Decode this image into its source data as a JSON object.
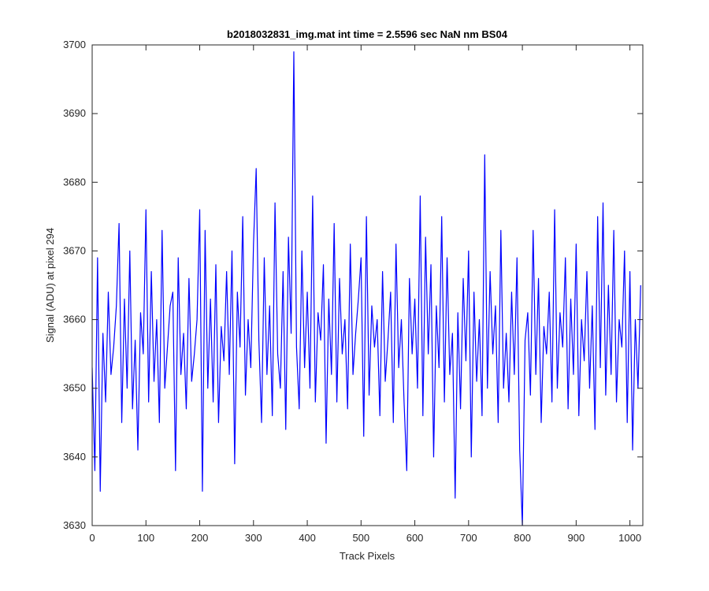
{
  "chart_data": {
    "type": "line",
    "title": "b2018032831_img.mat int time = 2.5596 sec  NaN nm BS04",
    "xlabel": "Track Pixels",
    "ylabel": "Signal (ADU) at pixel 294",
    "xlim": [
      0,
      1024
    ],
    "ylim": [
      3630,
      3700
    ],
    "xticks": [
      0,
      100,
      200,
      300,
      400,
      500,
      600,
      700,
      800,
      900,
      1000
    ],
    "yticks": [
      3630,
      3640,
      3650,
      3660,
      3670,
      3680,
      3690,
      3700
    ],
    "color": "#0000ff",
    "x": [
      0,
      5,
      10,
      15,
      20,
      25,
      30,
      35,
      40,
      45,
      50,
      55,
      60,
      65,
      70,
      75,
      80,
      85,
      90,
      95,
      100,
      105,
      110,
      115,
      120,
      125,
      130,
      135,
      140,
      145,
      150,
      155,
      160,
      165,
      170,
      175,
      180,
      185,
      190,
      195,
      200,
      205,
      210,
      215,
      220,
      225,
      230,
      235,
      240,
      245,
      250,
      255,
      260,
      265,
      270,
      275,
      280,
      285,
      290,
      295,
      300,
      305,
      310,
      315,
      320,
      325,
      330,
      335,
      340,
      345,
      350,
      355,
      360,
      365,
      370,
      375,
      380,
      385,
      390,
      395,
      400,
      405,
      410,
      415,
      420,
      425,
      430,
      435,
      440,
      445,
      450,
      455,
      460,
      465,
      470,
      475,
      480,
      485,
      490,
      495,
      500,
      505,
      510,
      515,
      520,
      525,
      530,
      535,
      540,
      545,
      550,
      555,
      560,
      565,
      570,
      575,
      580,
      585,
      590,
      595,
      600,
      605,
      610,
      615,
      620,
      625,
      630,
      635,
      640,
      645,
      650,
      655,
      660,
      665,
      670,
      675,
      680,
      685,
      690,
      695,
      700,
      705,
      710,
      715,
      720,
      725,
      730,
      735,
      740,
      745,
      750,
      755,
      760,
      765,
      770,
      775,
      780,
      785,
      790,
      795,
      800,
      805,
      810,
      815,
      820,
      825,
      830,
      835,
      840,
      845,
      850,
      855,
      860,
      865,
      870,
      875,
      880,
      885,
      890,
      895,
      900,
      905,
      910,
      915,
      920,
      925,
      930,
      935,
      940,
      945,
      950,
      955,
      960,
      965,
      970,
      975,
      980,
      985,
      990,
      995,
      1000,
      1005,
      1010,
      1015,
      1020
    ],
    "values": [
      3653,
      3638,
      3669,
      3635,
      3658,
      3648,
      3664,
      3652,
      3656,
      3662,
      3674,
      3645,
      3663,
      3650,
      3670,
      3647,
      3657,
      3641,
      3661,
      3655,
      3676,
      3648,
      3667,
      3651,
      3660,
      3645,
      3673,
      3650,
      3656,
      3662,
      3664,
      3638,
      3669,
      3652,
      3658,
      3647,
      3666,
      3651,
      3655,
      3660,
      3676,
      3635,
      3673,
      3650,
      3663,
      3648,
      3668,
      3645,
      3659,
      3654,
      3667,
      3652,
      3670,
      3639,
      3664,
      3656,
      3675,
      3649,
      3660,
      3653,
      3671,
      3682,
      3657,
      3645,
      3669,
      3652,
      3662,
      3646,
      3677,
      3655,
      3650,
      3667,
      3644,
      3672,
      3658,
      3699,
      3656,
      3647,
      3670,
      3653,
      3664,
      3650,
      3678,
      3648,
      3661,
      3657,
      3668,
      3642,
      3663,
      3652,
      3674,
      3648,
      3666,
      3655,
      3660,
      3647,
      3671,
      3652,
      3658,
      3663,
      3669,
      3643,
      3675,
      3649,
      3662,
      3656,
      3660,
      3646,
      3667,
      3651,
      3657,
      3664,
      3645,
      3671,
      3653,
      3660,
      3648,
      3638,
      3666,
      3655,
      3663,
      3650,
      3678,
      3646,
      3672,
      3655,
      3668,
      3640,
      3662,
      3653,
      3675,
      3648,
      3669,
      3652,
      3658,
      3634,
      3661,
      3647,
      3666,
      3654,
      3670,
      3640,
      3664,
      3651,
      3660,
      3646,
      3684,
      3650,
      3667,
      3655,
      3662,
      3645,
      3673,
      3650,
      3658,
      3648,
      3664,
      3652,
      3669,
      3641,
      3630,
      3657,
      3661,
      3649,
      3673,
      3652,
      3666,
      3645,
      3659,
      3655,
      3664,
      3648,
      3676,
      3650,
      3661,
      3656,
      3669,
      3647,
      3663,
      3652,
      3671,
      3646,
      3660,
      3654,
      3667,
      3650,
      3662,
      3644,
      3675,
      3653,
      3677,
      3649,
      3665,
      3652,
      3673,
      3648,
      3660,
      3656,
      3670,
      3645,
      3667,
      3641,
      3660,
      3650,
      3665
    ]
  }
}
